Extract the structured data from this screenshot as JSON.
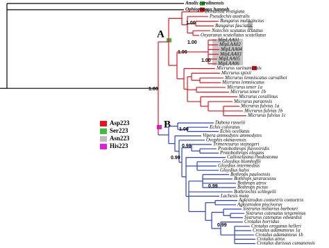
{
  "outgroups": [
    "Anolis carolinensis",
    "Ophiophagus hannah"
  ],
  "taxa": [
    "Demansia vestigiata",
    "Pseudechis australis",
    "Bungarus multicinctus",
    "Bungarus fasciatus",
    "Notechis scutatus scutatus",
    "Oxyuranus scutellatus scutellatus",
    "MipLAA01",
    "MipLAA02",
    "MipLAA04",
    "MipLAA03",
    "MipLAA05",
    "MipLAA06",
    "Micrurus surinamensis",
    "Micrurus spixii",
    "Micrurus lemniscatus carvalhoi",
    "Micrurus lemniscatus",
    "Micrurus tener 1a",
    "Micrurus tener 1b",
    "Micrurus corallinus",
    "Micrurus paraensis",
    "Micrurus fulvius 1a",
    "Micrurus fulvius 1b",
    "Micrurus fulvius 1c",
    "Daboia russelii",
    "Echis coloratus",
    "Echis ocellatus",
    "Vipera ammodytes ammodytes",
    "Ovophis okinavensis",
    "Trimeresurus stejnegeri",
    "Protobothrops flavoviridis",
    "Protobothrops elegans",
    "Calloselasma rhodostoma",
    "Gloydius blomhoffii",
    "Gloydius intermedius",
    "Gloydius halys",
    "Bothrops pauloensis",
    "Bothrops jararacussu",
    "Bothrops atrox",
    "Bothrops pictus",
    "Bothriechis schlegelii",
    "Lachesis muta",
    "Agkistrodon contortrix contortrix",
    "Agkistrodon piscivorus",
    "Sistrurus miliarius barbouri",
    "Sistrurus catenatus tergeminus",
    "Sistrurus catenatus edwardsii",
    "Crotalus horridus",
    "Crotalus oreganus helleri",
    "Crotalus adamanteus 1a",
    "Crotalus adamanteus 1b",
    "Crotalus atrox",
    "Crotalus durissus cumanensis"
  ],
  "clade_labels": [
    "A",
    "B"
  ],
  "supports": [
    "1.00",
    "1.00",
    "1.00",
    "1.00",
    "1.00",
    "1.00",
    "0.98",
    "0.99",
    "0.99",
    "0.99"
  ],
  "legend": [
    {
      "label": "Asp223",
      "color": "#e8141b"
    },
    {
      "label": "Ser223",
      "color": "#3cbf3c"
    },
    {
      "label": "Asn223",
      "color": "#bdbdbd"
    },
    {
      "label": "His223",
      "color": "#e01ee0"
    }
  ]
}
